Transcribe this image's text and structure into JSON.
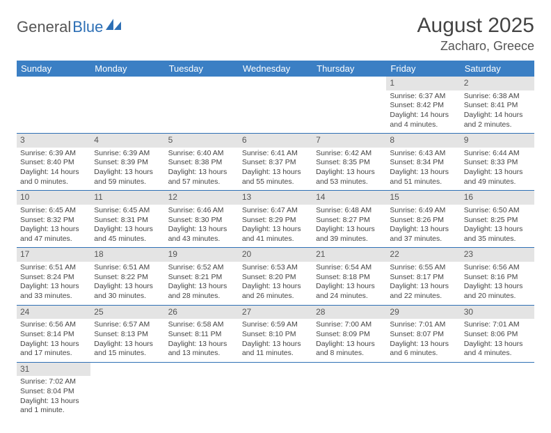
{
  "logo": {
    "part1": "General",
    "part2": "Blue"
  },
  "title": "August 2025",
  "location": "Zacharo, Greece",
  "colors": {
    "header_bg": "#3b7fc4",
    "header_text": "#ffffff",
    "daynum_bg": "#e4e4e4",
    "rule": "#2d6fb5",
    "text": "#444444"
  },
  "day_headers": [
    "Sunday",
    "Monday",
    "Tuesday",
    "Wednesday",
    "Thursday",
    "Friday",
    "Saturday"
  ],
  "weeks": [
    [
      null,
      null,
      null,
      null,
      null,
      {
        "n": "1",
        "sr": "6:37 AM",
        "ss": "8:42 PM",
        "dl": "14 hours and 4 minutes."
      },
      {
        "n": "2",
        "sr": "6:38 AM",
        "ss": "8:41 PM",
        "dl": "14 hours and 2 minutes."
      }
    ],
    [
      {
        "n": "3",
        "sr": "6:39 AM",
        "ss": "8:40 PM",
        "dl": "14 hours and 0 minutes."
      },
      {
        "n": "4",
        "sr": "6:39 AM",
        "ss": "8:39 PM",
        "dl": "13 hours and 59 minutes."
      },
      {
        "n": "5",
        "sr": "6:40 AM",
        "ss": "8:38 PM",
        "dl": "13 hours and 57 minutes."
      },
      {
        "n": "6",
        "sr": "6:41 AM",
        "ss": "8:37 PM",
        "dl": "13 hours and 55 minutes."
      },
      {
        "n": "7",
        "sr": "6:42 AM",
        "ss": "8:35 PM",
        "dl": "13 hours and 53 minutes."
      },
      {
        "n": "8",
        "sr": "6:43 AM",
        "ss": "8:34 PM",
        "dl": "13 hours and 51 minutes."
      },
      {
        "n": "9",
        "sr": "6:44 AM",
        "ss": "8:33 PM",
        "dl": "13 hours and 49 minutes."
      }
    ],
    [
      {
        "n": "10",
        "sr": "6:45 AM",
        "ss": "8:32 PM",
        "dl": "13 hours and 47 minutes."
      },
      {
        "n": "11",
        "sr": "6:45 AM",
        "ss": "8:31 PM",
        "dl": "13 hours and 45 minutes."
      },
      {
        "n": "12",
        "sr": "6:46 AM",
        "ss": "8:30 PM",
        "dl": "13 hours and 43 minutes."
      },
      {
        "n": "13",
        "sr": "6:47 AM",
        "ss": "8:29 PM",
        "dl": "13 hours and 41 minutes."
      },
      {
        "n": "14",
        "sr": "6:48 AM",
        "ss": "8:27 PM",
        "dl": "13 hours and 39 minutes."
      },
      {
        "n": "15",
        "sr": "6:49 AM",
        "ss": "8:26 PM",
        "dl": "13 hours and 37 minutes."
      },
      {
        "n": "16",
        "sr": "6:50 AM",
        "ss": "8:25 PM",
        "dl": "13 hours and 35 minutes."
      }
    ],
    [
      {
        "n": "17",
        "sr": "6:51 AM",
        "ss": "8:24 PM",
        "dl": "13 hours and 33 minutes."
      },
      {
        "n": "18",
        "sr": "6:51 AM",
        "ss": "8:22 PM",
        "dl": "13 hours and 30 minutes."
      },
      {
        "n": "19",
        "sr": "6:52 AM",
        "ss": "8:21 PM",
        "dl": "13 hours and 28 minutes."
      },
      {
        "n": "20",
        "sr": "6:53 AM",
        "ss": "8:20 PM",
        "dl": "13 hours and 26 minutes."
      },
      {
        "n": "21",
        "sr": "6:54 AM",
        "ss": "8:18 PM",
        "dl": "13 hours and 24 minutes."
      },
      {
        "n": "22",
        "sr": "6:55 AM",
        "ss": "8:17 PM",
        "dl": "13 hours and 22 minutes."
      },
      {
        "n": "23",
        "sr": "6:56 AM",
        "ss": "8:16 PM",
        "dl": "13 hours and 20 minutes."
      }
    ],
    [
      {
        "n": "24",
        "sr": "6:56 AM",
        "ss": "8:14 PM",
        "dl": "13 hours and 17 minutes."
      },
      {
        "n": "25",
        "sr": "6:57 AM",
        "ss": "8:13 PM",
        "dl": "13 hours and 15 minutes."
      },
      {
        "n": "26",
        "sr": "6:58 AM",
        "ss": "8:11 PM",
        "dl": "13 hours and 13 minutes."
      },
      {
        "n": "27",
        "sr": "6:59 AM",
        "ss": "8:10 PM",
        "dl": "13 hours and 11 minutes."
      },
      {
        "n": "28",
        "sr": "7:00 AM",
        "ss": "8:09 PM",
        "dl": "13 hours and 8 minutes."
      },
      {
        "n": "29",
        "sr": "7:01 AM",
        "ss": "8:07 PM",
        "dl": "13 hours and 6 minutes."
      },
      {
        "n": "30",
        "sr": "7:01 AM",
        "ss": "8:06 PM",
        "dl": "13 hours and 4 minutes."
      }
    ],
    [
      {
        "n": "31",
        "sr": "7:02 AM",
        "ss": "8:04 PM",
        "dl": "13 hours and 1 minute."
      },
      null,
      null,
      null,
      null,
      null,
      null
    ]
  ],
  "labels": {
    "sunrise": "Sunrise: ",
    "sunset": "Sunset: ",
    "daylight": "Daylight: "
  }
}
